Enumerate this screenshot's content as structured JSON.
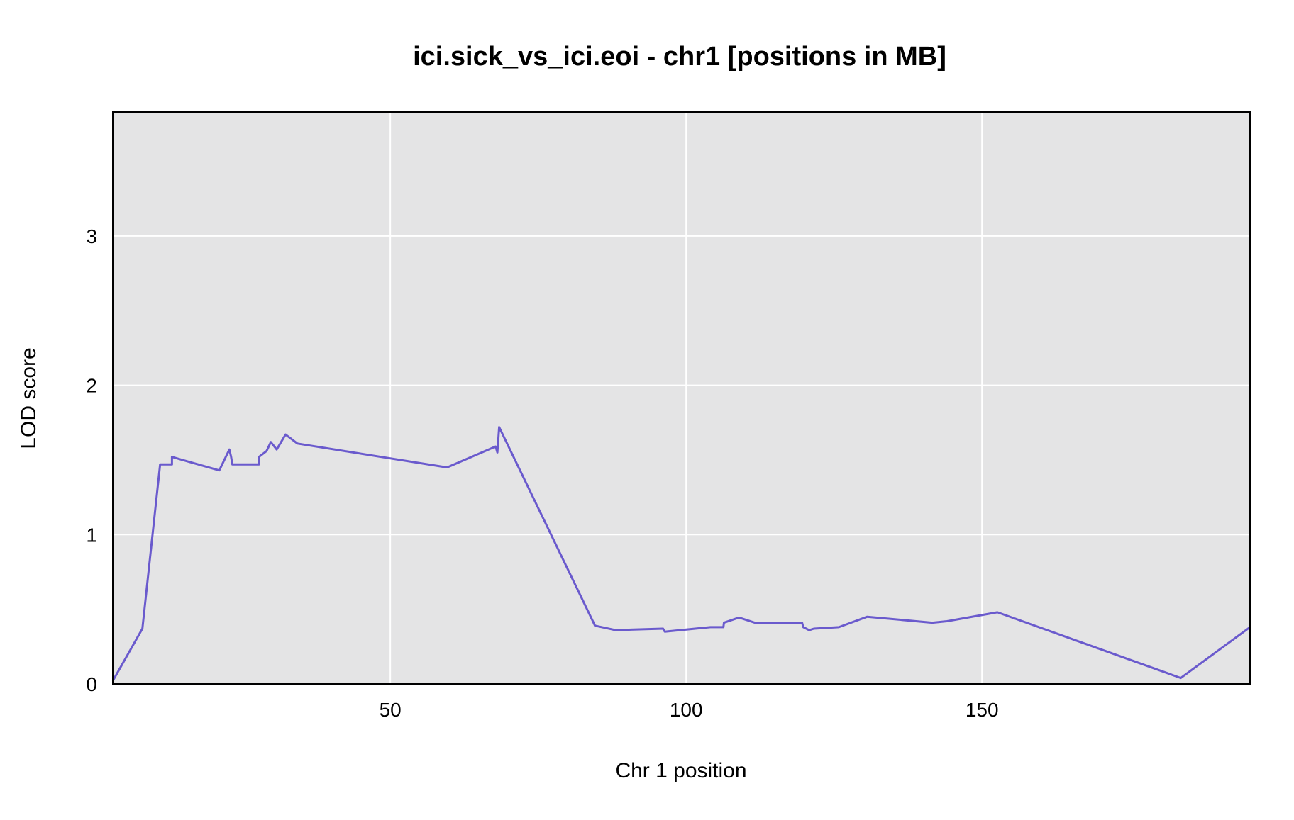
{
  "chart_data": {
    "type": "line",
    "title": "ici.sick_vs_ici.eoi - chr1 [positions in MB]",
    "xlabel": "Chr 1 position",
    "ylabel": "LOD score",
    "xlim": [
      3.1,
      195.3
    ],
    "ylim": [
      0,
      3.83
    ],
    "x_ticks": [
      50,
      100,
      150
    ],
    "y_ticks": [
      0,
      1,
      2,
      3
    ],
    "grid": true,
    "colors": {
      "panel": "#e4e4e5",
      "grid": "#ffffff",
      "line": "#6a5acd",
      "frame": "#000000",
      "baseline": "#00008b"
    },
    "series": [
      {
        "x": [
          3.1,
          8.1,
          11.1,
          13.1,
          13.1,
          21.1,
          22.8,
          23.1,
          23.3,
          27.8,
          27.8,
          29.1,
          29.8,
          30.8,
          32.3,
          34.3,
          59.6,
          67.8,
          68.1,
          68.4,
          84.6,
          88.1,
          96.1,
          96.4,
          104.1,
          106.3,
          106.4,
          108.6,
          109.3,
          111.6,
          119.6,
          119.8,
          120.8,
          121.6,
          125.8,
          130.6,
          141.6,
          144.1,
          152.6,
          183.6,
          195.3
        ],
        "y": [
          0.02,
          0.37,
          1.47,
          1.47,
          1.52,
          1.43,
          1.57,
          1.52,
          1.47,
          1.47,
          1.52,
          1.56,
          1.62,
          1.57,
          1.67,
          1.61,
          1.45,
          1.59,
          1.55,
          1.72,
          0.39,
          0.36,
          0.37,
          0.35,
          0.38,
          0.38,
          0.41,
          0.44,
          0.44,
          0.41,
          0.41,
          0.38,
          0.36,
          0.37,
          0.38,
          0.45,
          0.41,
          0.42,
          0.48,
          0.04,
          0.38
        ]
      }
    ]
  }
}
